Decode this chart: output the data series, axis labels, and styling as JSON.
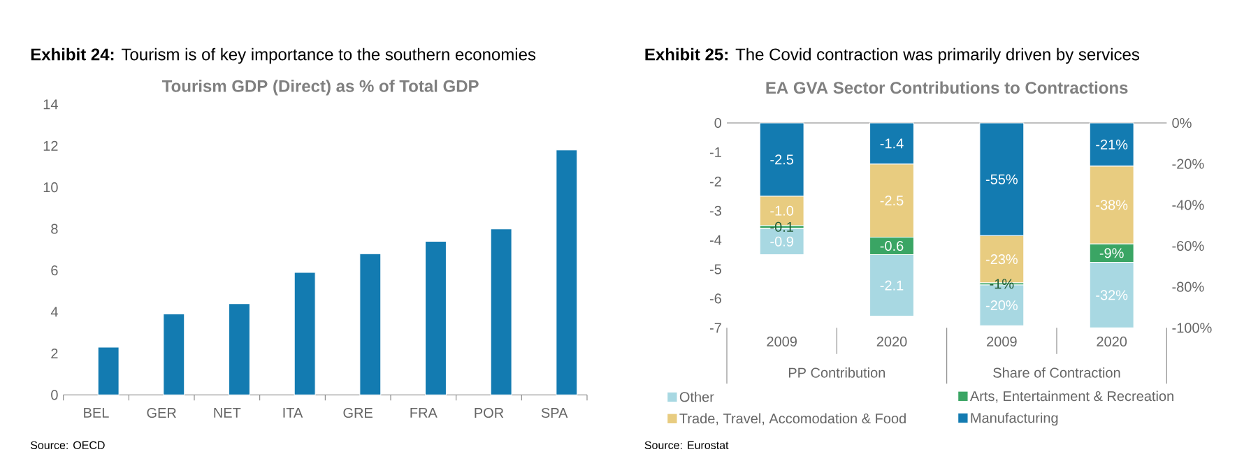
{
  "chart_data": [
    {
      "type": "bar",
      "title": "**Exhibit 24:** Tourism is of key importance to the southern economies",
      "subtitle": "Tourism GDP (Direct) as % of Total GDP",
      "categories": [
        "BEL",
        "GER",
        "NET",
        "ITA",
        "GRE",
        "FRA",
        "POR",
        "SPA"
      ],
      "values": [
        2.3,
        3.9,
        4.4,
        5.9,
        6.8,
        7.4,
        8.0,
        11.8
      ],
      "color": "#137bb1",
      "ylim": [
        0,
        14
      ],
      "yticks": [
        0,
        2,
        4,
        6,
        8,
        10,
        12,
        14
      ],
      "annotations": [
        "Source: OECD"
      ]
    },
    {
      "type": "bar",
      "stacked": true,
      "title": "**Exhibit 25:** The Covid contraction was primarily driven by services",
      "subtitle": "EA GVA Sector Contributions to Contractions",
      "categories": [
        "2009",
        "2020",
        "2009",
        "2020"
      ],
      "series": [
        {
          "name": "Manufacturing",
          "color": "#137bb1",
          "values": [
            -2.5,
            -1.4,
            null,
            null
          ],
          "value_labels": [
            "-2.5",
            "-1.4",
            null,
            null
          ]
        },
        {
          "name": "Trade, Travel, Accomodation & Food",
          "color": "#e8cc80",
          "values": [
            -1.0,
            -2.5,
            null,
            null
          ],
          "value_labels": [
            "-1.0",
            "-2.5",
            null,
            null
          ]
        },
        {
          "name": "Arts, Entertainment & Recreation",
          "color": "#3aa564",
          "values": [
            -0.1,
            -0.6,
            null,
            null
          ],
          "value_labels": [
            "-0.1",
            "-0.6",
            null,
            null
          ]
        },
        {
          "name": "Other",
          "color": "#a8d8e2",
          "values": [
            -0.9,
            -2.1,
            null,
            null
          ],
          "value_labels": [
            "-0.9",
            "-2.1",
            null,
            null
          ]
        },
        {
          "color": "#137bb1",
          "axis": "y2",
          "values": [
            null,
            null,
            -55,
            -21
          ],
          "value_labels": [
            null,
            null,
            "-55%",
            "-21%"
          ]
        },
        {
          "color": "#e8cc80",
          "axis": "y2",
          "values": [
            null,
            null,
            -23,
            -38
          ],
          "value_labels": [
            null,
            null,
            "-23%",
            "-38%"
          ]
        },
        {
          "color": "#3aa564",
          "axis": "y2",
          "values": [
            null,
            null,
            -1,
            -9
          ],
          "value_labels": [
            null,
            null,
            "-1%",
            "-9%"
          ]
        },
        {
          "color": "#a8d8e2",
          "axis": "y2",
          "values": [
            null,
            null,
            -20,
            -32
          ],
          "value_labels": [
            null,
            null,
            "-20%",
            "-32%"
          ]
        }
      ],
      "ylim": [
        -7,
        0
      ],
      "yticks": [
        -7,
        -6,
        -5,
        -4,
        -3,
        -2,
        -1,
        0
      ],
      "y2lim": [
        -100,
        0
      ],
      "y2ticks": [
        {
          "value": -100,
          "label": "-100%"
        },
        {
          "value": -80,
          "label": "-80%"
        },
        {
          "value": -60,
          "label": "-60%"
        },
        {
          "value": -40,
          "label": "-40%"
        },
        {
          "value": -20,
          "label": "-20%"
        },
        {
          "value": 0,
          "label": "0%"
        }
      ],
      "legend": "bottom",
      "annotations": [
        "PP Contribution",
        "Share of Contraction",
        "Source: Eurostat"
      ]
    }
  ]
}
